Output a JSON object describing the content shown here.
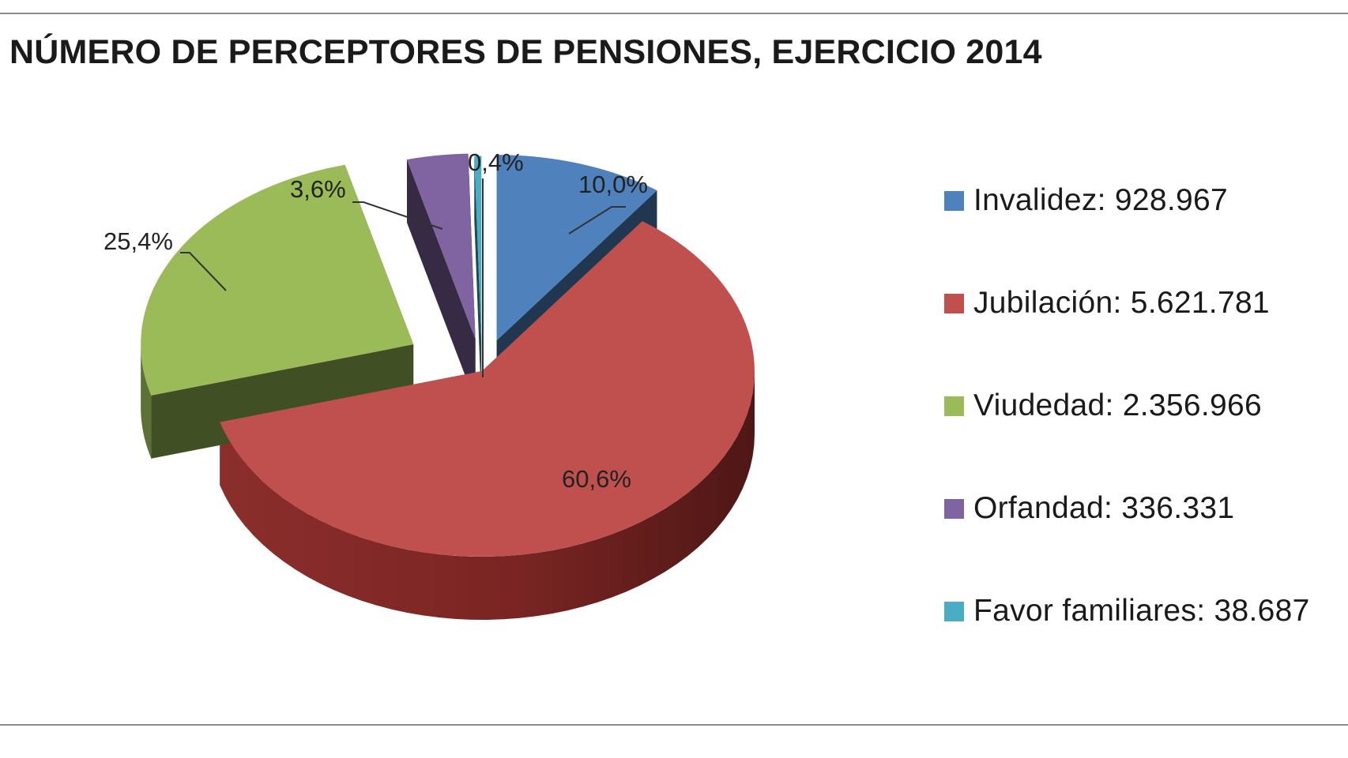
{
  "chart_data": {
    "type": "pie",
    "style": "3d-exploded",
    "title": "NÚMERO DE PERCEPTORES DE PENSIONES, EJERCICIO 2014",
    "series": [
      {
        "name": "Invalidez",
        "value": 928967,
        "value_label": "928.967",
        "percent_label": "10,0%",
        "color": "#4F81BD",
        "legend_text": "Invalidez:  928.967"
      },
      {
        "name": "Jubilación",
        "value": 5621781,
        "value_label": "5.621.781",
        "percent_label": "60,6%",
        "color": "#C0504D",
        "legend_text": "Jubilación: 5.621.781"
      },
      {
        "name": "Viudedad",
        "value": 2356966,
        "value_label": "2.356.966",
        "percent_label": "25,4%",
        "color": "#9BBB59",
        "legend_text": "Viudedad: 2.356.966"
      },
      {
        "name": "Orfandad",
        "value": 336331,
        "value_label": "336.331",
        "percent_label": "3,6%",
        "color": "#8064A2",
        "legend_text": "Orfandad: 336.331"
      },
      {
        "name": "Favor familiares",
        "value": 38687,
        "value_label": "38.687",
        "percent_label": "0,4%",
        "color": "#4BACC6",
        "legend_text": "Favor familiares: 38.687"
      }
    ],
    "legend_position": "right"
  }
}
